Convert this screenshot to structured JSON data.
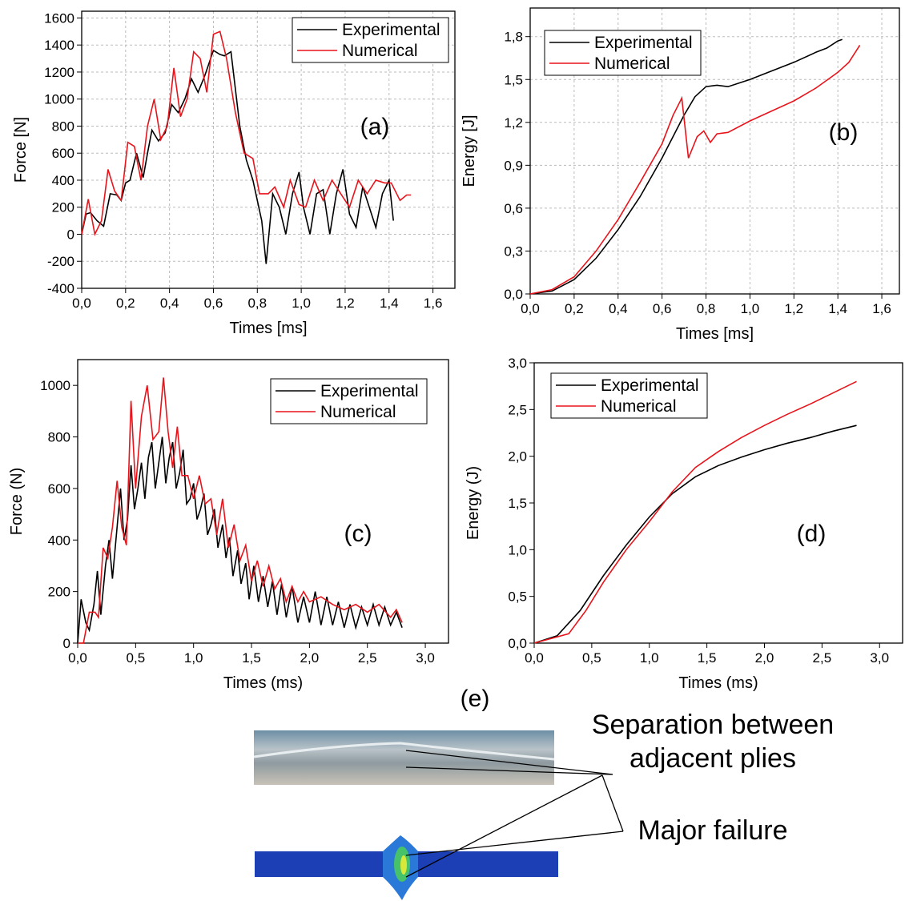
{
  "chart_data": [
    {
      "type": "line",
      "annotation": "(a)",
      "x_label": "Times [ms]",
      "y_label": "Force [N]",
      "xlim": [
        0,
        1.7
      ],
      "ylim": [
        -400,
        1650
      ],
      "grid": true,
      "legend_position": "upper right",
      "xticks": [
        {
          "value": 0,
          "label": "0,0"
        },
        {
          "value": 0.2,
          "label": "0,2"
        },
        {
          "value": 0.4,
          "label": "0,4"
        },
        {
          "value": 0.6,
          "label": "0,6"
        },
        {
          "value": 0.8,
          "label": "0,8"
        },
        {
          "value": 1.0,
          "label": "1,0"
        },
        {
          "value": 1.2,
          "label": "1,2"
        },
        {
          "value": 1.4,
          "label": "1,4"
        },
        {
          "value": 1.6,
          "label": "1,6"
        }
      ],
      "yticks": [
        -400,
        -200,
        0,
        200,
        400,
        600,
        800,
        1000,
        1200,
        1400,
        1600
      ],
      "series": [
        {
          "name": "Experimental",
          "color": "#000000",
          "x": [
            0,
            0.02,
            0.04,
            0.07,
            0.1,
            0.13,
            0.16,
            0.18,
            0.2,
            0.22,
            0.25,
            0.28,
            0.3,
            0.32,
            0.35,
            0.38,
            0.41,
            0.44,
            0.47,
            0.5,
            0.53,
            0.56,
            0.6,
            0.63,
            0.65,
            0.68,
            0.72,
            0.75,
            0.78,
            0.82,
            0.84,
            0.87,
            0.9,
            0.93,
            0.96,
            0.99,
            1.01,
            1.04,
            1.07,
            1.1,
            1.13,
            1.16,
            1.19,
            1.22,
            1.25,
            1.28,
            1.31,
            1.34,
            1.37,
            1.4,
            1.42
          ],
          "values": [
            0,
            150,
            160,
            100,
            60,
            300,
            290,
            250,
            380,
            400,
            600,
            420,
            600,
            770,
            690,
            750,
            960,
            900,
            1000,
            1150,
            1050,
            1170,
            1360,
            1330,
            1320,
            1350,
            800,
            550,
            400,
            100,
            -220,
            300,
            200,
            0,
            300,
            460,
            200,
            0,
            300,
            330,
            0,
            300,
            480,
            150,
            50,
            350,
            200,
            50,
            300,
            400,
            100
          ]
        },
        {
          "name": "Numerical",
          "color": "#e8141b",
          "x": [
            0,
            0.03,
            0.06,
            0.09,
            0.12,
            0.15,
            0.18,
            0.21,
            0.24,
            0.27,
            0.3,
            0.33,
            0.36,
            0.39,
            0.42,
            0.45,
            0.48,
            0.51,
            0.54,
            0.57,
            0.6,
            0.63,
            0.66,
            0.7,
            0.74,
            0.78,
            0.81,
            0.85,
            0.88,
            0.92,
            0.95,
            0.99,
            1.02,
            1.06,
            1.1,
            1.14,
            1.18,
            1.22,
            1.26,
            1.3,
            1.34,
            1.38,
            1.41,
            1.45,
            1.48,
            1.5
          ],
          "values": [
            0,
            260,
            0,
            100,
            480,
            320,
            250,
            680,
            650,
            400,
            800,
            1000,
            700,
            800,
            1230,
            870,
            1000,
            1350,
            1300,
            1050,
            1480,
            1500,
            1300,
            900,
            600,
            560,
            300,
            300,
            350,
            200,
            400,
            220,
            200,
            400,
            250,
            400,
            300,
            200,
            400,
            300,
            400,
            380,
            380,
            250,
            290,
            290
          ]
        }
      ]
    },
    {
      "type": "line",
      "annotation": "(b)",
      "x_label": "Times [ms]",
      "y_label": "Energy [J]",
      "xlim": [
        0,
        1.68
      ],
      "ylim": [
        0,
        2.0
      ],
      "grid": true,
      "legend_position": "upper left",
      "xticks": [
        {
          "value": 0,
          "label": "0,0"
        },
        {
          "value": 0.2,
          "label": "0,2"
        },
        {
          "value": 0.4,
          "label": "0,4"
        },
        {
          "value": 0.6,
          "label": "0,6"
        },
        {
          "value": 0.8,
          "label": "0,8"
        },
        {
          "value": 1.0,
          "label": "1,0"
        },
        {
          "value": 1.2,
          "label": "1,2"
        },
        {
          "value": 1.4,
          "label": "1,4"
        },
        {
          "value": 1.6,
          "label": "1,6"
        }
      ],
      "yticks": [
        {
          "value": 0,
          "label": "0,0"
        },
        {
          "value": 0.3,
          "label": "0,3"
        },
        {
          "value": 0.6,
          "label": "0,6"
        },
        {
          "value": 0.9,
          "label": "0,9"
        },
        {
          "value": 1.2,
          "label": "1,2"
        },
        {
          "value": 1.5,
          "label": "1,5"
        },
        {
          "value": 1.8,
          "label": "1,8"
        }
      ],
      "series": [
        {
          "name": "Experimental",
          "color": "#000000",
          "x": [
            0,
            0.1,
            0.2,
            0.3,
            0.4,
            0.5,
            0.6,
            0.7,
            0.75,
            0.8,
            0.85,
            0.9,
            1.0,
            1.1,
            1.2,
            1.3,
            1.35,
            1.4,
            1.42
          ],
          "values": [
            0,
            0.02,
            0.1,
            0.25,
            0.45,
            0.68,
            0.95,
            1.25,
            1.38,
            1.45,
            1.46,
            1.45,
            1.5,
            1.56,
            1.62,
            1.69,
            1.72,
            1.77,
            1.78
          ]
        },
        {
          "name": "Numerical",
          "color": "#e8141b",
          "x": [
            0,
            0.1,
            0.2,
            0.3,
            0.4,
            0.5,
            0.6,
            0.65,
            0.69,
            0.72,
            0.76,
            0.79,
            0.82,
            0.85,
            0.9,
            1.0,
            1.1,
            1.2,
            1.3,
            1.4,
            1.45,
            1.5
          ],
          "values": [
            0,
            0.03,
            0.12,
            0.3,
            0.52,
            0.78,
            1.05,
            1.25,
            1.37,
            0.95,
            1.1,
            1.14,
            1.06,
            1.12,
            1.13,
            1.21,
            1.28,
            1.35,
            1.44,
            1.55,
            1.62,
            1.74
          ]
        }
      ]
    },
    {
      "type": "line",
      "annotation": "(c)",
      "x_label": "Times (ms)",
      "y_label": "Force (N)",
      "xlim": [
        0,
        3.2
      ],
      "ylim": [
        0,
        1100
      ],
      "grid": false,
      "legend_position": "upper right",
      "xticks": [
        {
          "value": 0,
          "label": "0,0"
        },
        {
          "value": 0.5,
          "label": "0,5"
        },
        {
          "value": 1.0,
          "label": "1,0"
        },
        {
          "value": 1.5,
          "label": "1,5"
        },
        {
          "value": 2.0,
          "label": "2,0"
        },
        {
          "value": 2.5,
          "label": "2,5"
        },
        {
          "value": 3.0,
          "label": "3,0"
        }
      ],
      "yticks": [
        0,
        200,
        400,
        600,
        800,
        1000
      ],
      "series": [
        {
          "name": "Experimental",
          "color": "#000000",
          "x": [
            0,
            0.03,
            0.07,
            0.1,
            0.14,
            0.17,
            0.2,
            0.24,
            0.27,
            0.3,
            0.34,
            0.37,
            0.4,
            0.43,
            0.46,
            0.49,
            0.52,
            0.55,
            0.58,
            0.61,
            0.64,
            0.67,
            0.7,
            0.73,
            0.76,
            0.79,
            0.82,
            0.85,
            0.88,
            0.91,
            0.94,
            0.97,
            1.0,
            1.03,
            1.06,
            1.09,
            1.12,
            1.15,
            1.18,
            1.21,
            1.25,
            1.28,
            1.31,
            1.34,
            1.38,
            1.41,
            1.45,
            1.48,
            1.52,
            1.56,
            1.6,
            1.64,
            1.68,
            1.72,
            1.76,
            1.8,
            1.85,
            1.9,
            1.95,
            2.0,
            2.05,
            2.1,
            2.15,
            2.2,
            2.25,
            2.3,
            2.35,
            2.4,
            2.45,
            2.5,
            2.55,
            2.6,
            2.65,
            2.7,
            2.75,
            2.8
          ],
          "values": [
            0,
            170,
            80,
            50,
            150,
            280,
            110,
            300,
            400,
            250,
            450,
            600,
            400,
            480,
            690,
            520,
            600,
            700,
            560,
            720,
            780,
            600,
            700,
            800,
            620,
            720,
            780,
            600,
            660,
            750,
            540,
            560,
            620,
            480,
            520,
            580,
            420,
            460,
            520,
            370,
            460,
            330,
            410,
            260,
            360,
            230,
            310,
            170,
            300,
            160,
            260,
            140,
            240,
            110,
            230,
            100,
            220,
            80,
            180,
            80,
            200,
            70,
            180,
            70,
            160,
            60,
            150,
            60,
            140,
            70,
            150,
            70,
            140,
            70,
            120,
            60
          ]
        },
        {
          "name": "Numerical",
          "color": "#e8141b",
          "x": [
            0,
            0.05,
            0.1,
            0.15,
            0.18,
            0.22,
            0.26,
            0.3,
            0.34,
            0.38,
            0.42,
            0.46,
            0.5,
            0.55,
            0.6,
            0.65,
            0.7,
            0.74,
            0.78,
            0.82,
            0.86,
            0.9,
            0.95,
            1.0,
            1.05,
            1.1,
            1.15,
            1.2,
            1.25,
            1.3,
            1.35,
            1.4,
            1.45,
            1.5,
            1.55,
            1.6,
            1.65,
            1.7,
            1.75,
            1.8,
            1.85,
            1.9,
            1.95,
            2.0,
            2.1,
            2.2,
            2.3,
            2.4,
            2.5,
            2.6,
            2.7,
            2.75,
            2.8
          ],
          "values": [
            0,
            0,
            120,
            120,
            100,
            370,
            330,
            450,
            630,
            450,
            380,
            940,
            600,
            880,
            1000,
            790,
            820,
            1030,
            820,
            680,
            840,
            650,
            650,
            560,
            650,
            540,
            560,
            420,
            560,
            370,
            460,
            320,
            380,
            240,
            320,
            220,
            300,
            210,
            250,
            160,
            220,
            160,
            200,
            160,
            180,
            150,
            130,
            150,
            120,
            150,
            100,
            130,
            80
          ]
        }
      ]
    },
    {
      "type": "line",
      "annotation": "(d)",
      "x_label": "Times (ms)",
      "y_label": "Energy (J)",
      "xlim": [
        0,
        3.2
      ],
      "ylim": [
        0,
        3.0
      ],
      "grid": false,
      "legend_position": "upper left",
      "xticks": [
        {
          "value": 0,
          "label": "0,0"
        },
        {
          "value": 0.5,
          "label": "0,5"
        },
        {
          "value": 1.0,
          "label": "1,0"
        },
        {
          "value": 1.5,
          "label": "1,5"
        },
        {
          "value": 2.0,
          "label": "2,0"
        },
        {
          "value": 2.5,
          "label": "2,5"
        },
        {
          "value": 3.0,
          "label": "3,0"
        }
      ],
      "yticks": [
        {
          "value": 0,
          "label": "0,0"
        },
        {
          "value": 0.5,
          "label": "0,5"
        },
        {
          "value": 1.0,
          "label": "1,0"
        },
        {
          "value": 1.5,
          "label": "1,5"
        },
        {
          "value": 2.0,
          "label": "2,0"
        },
        {
          "value": 2.5,
          "label": "2,5"
        },
        {
          "value": 3.0,
          "label": "3,0"
        }
      ],
      "series": [
        {
          "name": "Experimental",
          "color": "#000000",
          "x": [
            0,
            0.2,
            0.4,
            0.6,
            0.8,
            1.0,
            1.2,
            1.4,
            1.6,
            1.8,
            2.0,
            2.2,
            2.4,
            2.6,
            2.8
          ],
          "values": [
            0,
            0.08,
            0.35,
            0.72,
            1.05,
            1.35,
            1.6,
            1.78,
            1.9,
            1.99,
            2.07,
            2.14,
            2.2,
            2.27,
            2.33
          ]
        },
        {
          "name": "Numerical",
          "color": "#e8141b",
          "x": [
            0,
            0.3,
            0.45,
            0.6,
            0.8,
            1.0,
            1.2,
            1.4,
            1.6,
            1.8,
            2.0,
            2.2,
            2.4,
            2.6,
            2.8
          ],
          "values": [
            0,
            0.1,
            0.35,
            0.65,
            1.0,
            1.3,
            1.62,
            1.88,
            2.05,
            2.2,
            2.33,
            2.45,
            2.56,
            2.68,
            2.8
          ]
        }
      ]
    }
  ],
  "panel_e": {
    "label": "(e)",
    "annotations": [
      "Separation between adjacent plies",
      "Major failure"
    ]
  }
}
